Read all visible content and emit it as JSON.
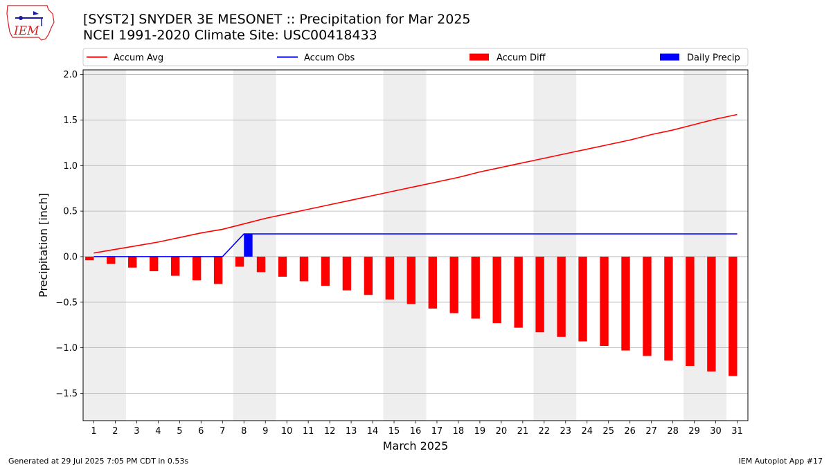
{
  "header": {
    "title_line1": "[SYST2] SNYDER 3E MESONET :: Precipitation for Mar 2025",
    "title_line2": "NCEI 1991-2020 Climate Site: USC00418433"
  },
  "logo": {
    "text": "IEM",
    "icon": "iem-logo-icon"
  },
  "footer": {
    "generated": "Generated at 29 Jul 2025 7:05 PM CDT in 0.53s",
    "app": "IEM Autoplot App #17"
  },
  "chart_data": {
    "type": "bar",
    "title": "[SYST2] SNYDER 3E MESONET :: Precipitation for Mar 2025",
    "subtitle": "NCEI 1991-2020 Climate Site: USC00418433",
    "xlabel": "March 2025",
    "ylabel": "Precipitation [inch]",
    "xlim": [
      0.5,
      31.5
    ],
    "ylim": [
      -1.8,
      2.05
    ],
    "yticks": [
      -1.5,
      -1.0,
      -0.5,
      0.0,
      0.5,
      1.0,
      1.5,
      2.0
    ],
    "ytick_labels": [
      "−1.5",
      "−1.0",
      "−0.5",
      "0.0",
      "0.5",
      "1.0",
      "1.5",
      "2.0"
    ],
    "grid": "horizontal",
    "legend_position": "top",
    "weekend_shading": [
      [
        0.5,
        2.5
      ],
      [
        7.5,
        9.5
      ],
      [
        14.5,
        16.5
      ],
      [
        21.5,
        23.5
      ],
      [
        28.5,
        30.5
      ]
    ],
    "x": [
      1,
      2,
      3,
      4,
      5,
      6,
      7,
      8,
      9,
      10,
      11,
      12,
      13,
      14,
      15,
      16,
      17,
      18,
      19,
      20,
      21,
      22,
      23,
      24,
      25,
      26,
      27,
      28,
      29,
      30,
      31
    ],
    "series": [
      {
        "name": "Accum Avg",
        "kind": "line",
        "color": "#ff0000",
        "values": [
          0.04,
          0.08,
          0.12,
          0.16,
          0.21,
          0.26,
          0.3,
          0.36,
          0.42,
          0.47,
          0.52,
          0.57,
          0.62,
          0.67,
          0.72,
          0.77,
          0.82,
          0.87,
          0.93,
          0.98,
          1.03,
          1.08,
          1.13,
          1.18,
          1.23,
          1.28,
          1.34,
          1.39,
          1.45,
          1.51,
          1.56
        ]
      },
      {
        "name": "Accum Obs",
        "kind": "line",
        "color": "#0000ff",
        "values": [
          0,
          0,
          0,
          0,
          0,
          0,
          0,
          0.25,
          0.25,
          0.25,
          0.25,
          0.25,
          0.25,
          0.25,
          0.25,
          0.25,
          0.25,
          0.25,
          0.25,
          0.25,
          0.25,
          0.25,
          0.25,
          0.25,
          0.25,
          0.25,
          0.25,
          0.25,
          0.25,
          0.25,
          0.25
        ]
      },
      {
        "name": "Accum Diff",
        "kind": "bar",
        "color": "#ff0000",
        "offset": -0.2,
        "values": [
          -0.04,
          -0.08,
          -0.12,
          -0.16,
          -0.21,
          -0.26,
          -0.3,
          -0.11,
          -0.17,
          -0.22,
          -0.27,
          -0.32,
          -0.37,
          -0.42,
          -0.47,
          -0.52,
          -0.57,
          -0.62,
          -0.68,
          -0.73,
          -0.78,
          -0.83,
          -0.88,
          -0.93,
          -0.98,
          -1.03,
          -1.09,
          -1.14,
          -1.2,
          -1.26,
          -1.31
        ]
      },
      {
        "name": "Daily Precip",
        "kind": "bar",
        "color": "#0000ff",
        "offset": 0.2,
        "values": [
          0,
          0,
          0,
          0,
          0,
          0,
          0,
          0.25,
          0,
          0,
          0,
          0,
          0,
          0,
          0,
          0,
          0,
          0,
          0,
          0,
          0,
          0,
          0,
          0,
          0,
          0,
          0,
          0,
          0,
          0,
          0
        ]
      }
    ]
  }
}
